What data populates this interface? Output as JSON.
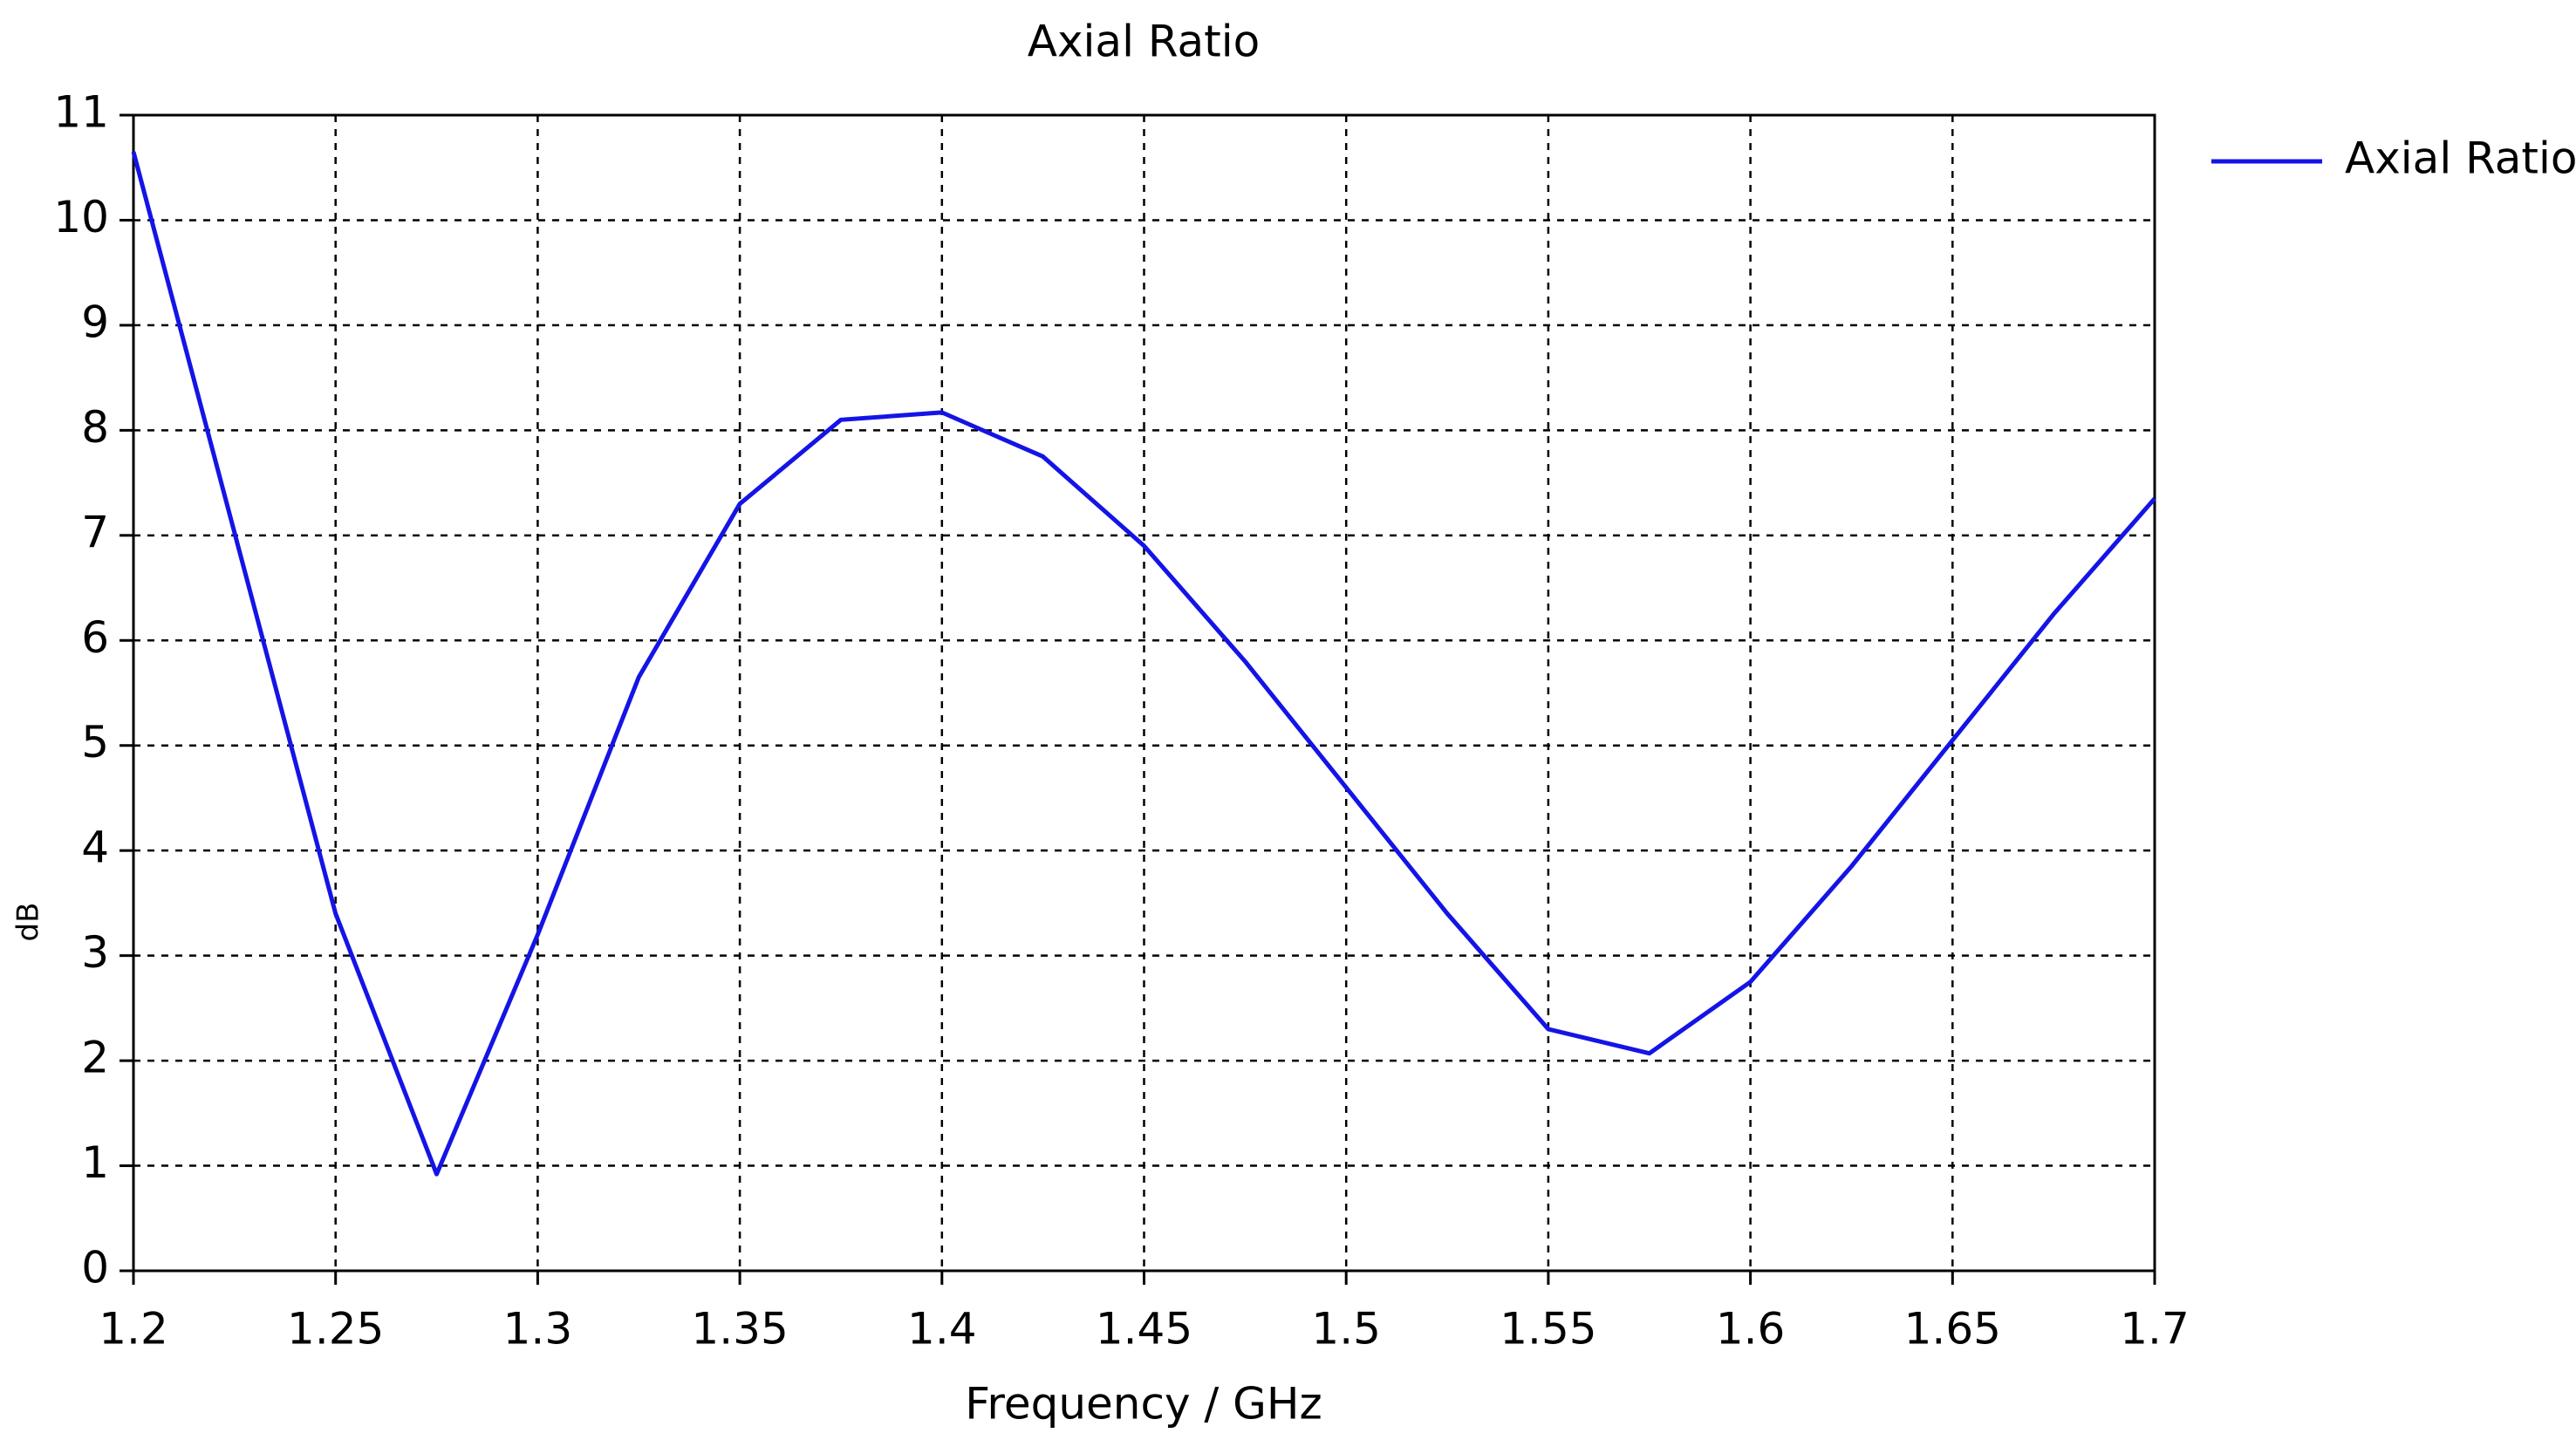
{
  "chart_data": {
    "type": "line",
    "title": "Axial Ratio",
    "x_label": "Frequency / GHz",
    "y_label": "dB",
    "x": [
      1.2,
      1.25,
      1.275,
      1.3,
      1.325,
      1.35,
      1.375,
      1.4,
      1.425,
      1.45,
      1.475,
      1.5,
      1.525,
      1.55,
      1.575,
      1.6,
      1.625,
      1.65,
      1.675,
      1.7
    ],
    "series": [
      {
        "name": "Axial Ratio",
        "color": "#1414e6",
        "values": [
          10.65,
          3.4,
          0.92,
          3.2,
          5.65,
          7.3,
          8.1,
          8.17,
          7.75,
          6.9,
          5.8,
          4.6,
          3.4,
          2.3,
          2.07,
          2.75,
          3.85,
          5.05,
          6.25,
          7.35
        ]
      }
    ],
    "xlim": [
      1.2,
      1.7
    ],
    "xticks": [
      1.2,
      1.25,
      1.3,
      1.35,
      1.4,
      1.45,
      1.5,
      1.55,
      1.6,
      1.65,
      1.7
    ],
    "ylim": [
      0,
      11
    ],
    "yticks": [
      0,
      1,
      2,
      3,
      4,
      5,
      6,
      7,
      8,
      9,
      10,
      11
    ],
    "grid": true,
    "legend": "right"
  }
}
